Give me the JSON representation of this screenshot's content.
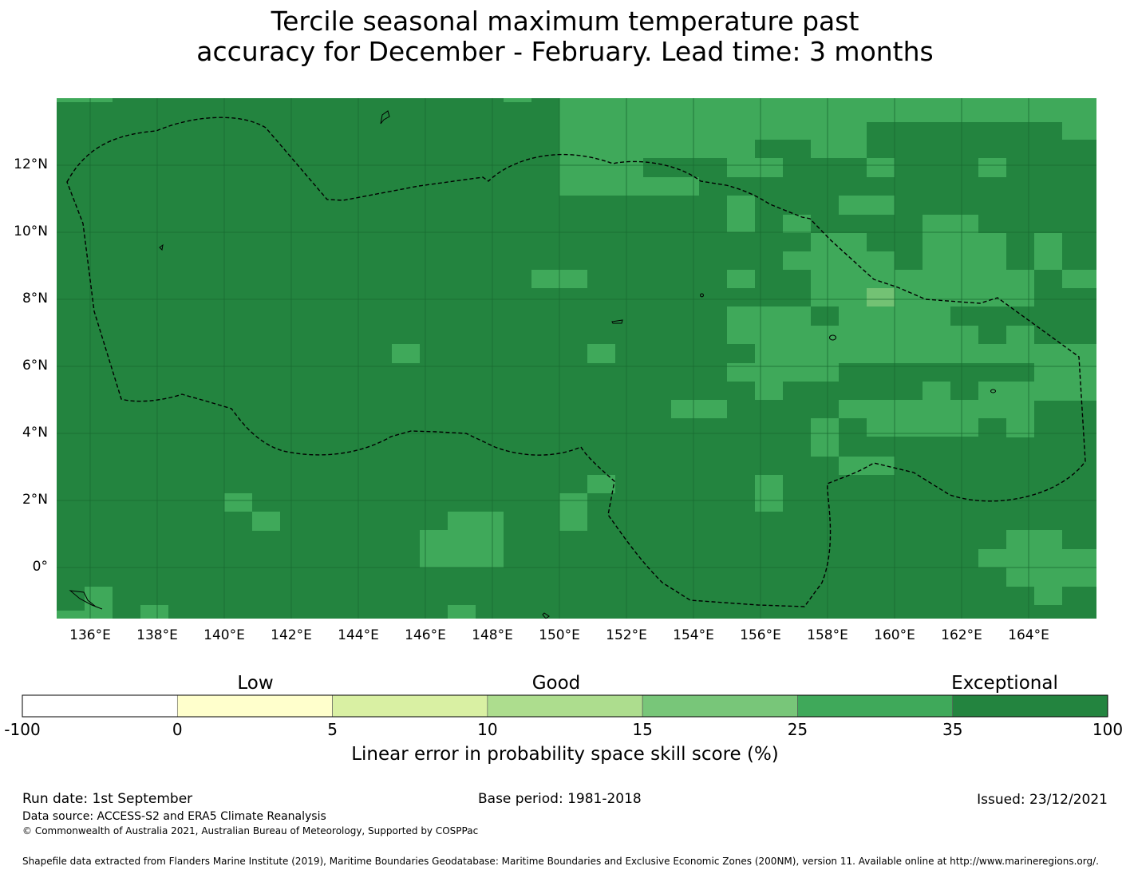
{
  "title_line1": "Tercile seasonal maximum temperature past",
  "title_line2": "accuracy for December - February. Lead time: 3 months",
  "map": {
    "lat_labels": [
      "12°N",
      "10°N",
      "8°N",
      "6°N",
      "4°N",
      "2°N",
      "0°"
    ],
    "lon_labels": [
      "136°E",
      "138°E",
      "140°E",
      "142°E",
      "144°E",
      "146°E",
      "148°E",
      "150°E",
      "152°E",
      "154°E",
      "156°E",
      "158°E",
      "160°E",
      "162°E",
      "164°E"
    ],
    "colors": {
      "dark": "#23843f",
      "medium": "#3fa95a",
      "light": "#73c274",
      "eez_line": "#000000"
    }
  },
  "colorbar": {
    "category_labels": [
      "Low",
      "Good",
      "Exceptional"
    ],
    "bin_edges": [
      "-100",
      "0",
      "5",
      "10",
      "15",
      "25",
      "35",
      "100"
    ],
    "bin_colors": [
      "#ffffff",
      "#ffffcc",
      "#d9f0a3",
      "#addd8e",
      "#78c679",
      "#3fa95a",
      "#23843f"
    ],
    "label": "Linear error in probability space skill score (%)"
  },
  "footer": {
    "run_date": "Run date: 1st September",
    "base_period": "Base period: 1981-2018",
    "issued": "Issued: 23/12/2021",
    "data_source": "Data source: ACCESS-S2 and ERA5 Climate Reanalysis",
    "copyright": "© Commonwealth of Australia 2021, Australian Bureau of Meteorology, Supported by COSPPac",
    "shapefile": "Shapefile data extracted from Flanders Marine Institute (2019), Maritime Boundaries Geodatabase: Maritime Boundaries and Exclusive Economic Zones (200NM), version 11. Available online at http://www.marineregions.org/."
  }
}
